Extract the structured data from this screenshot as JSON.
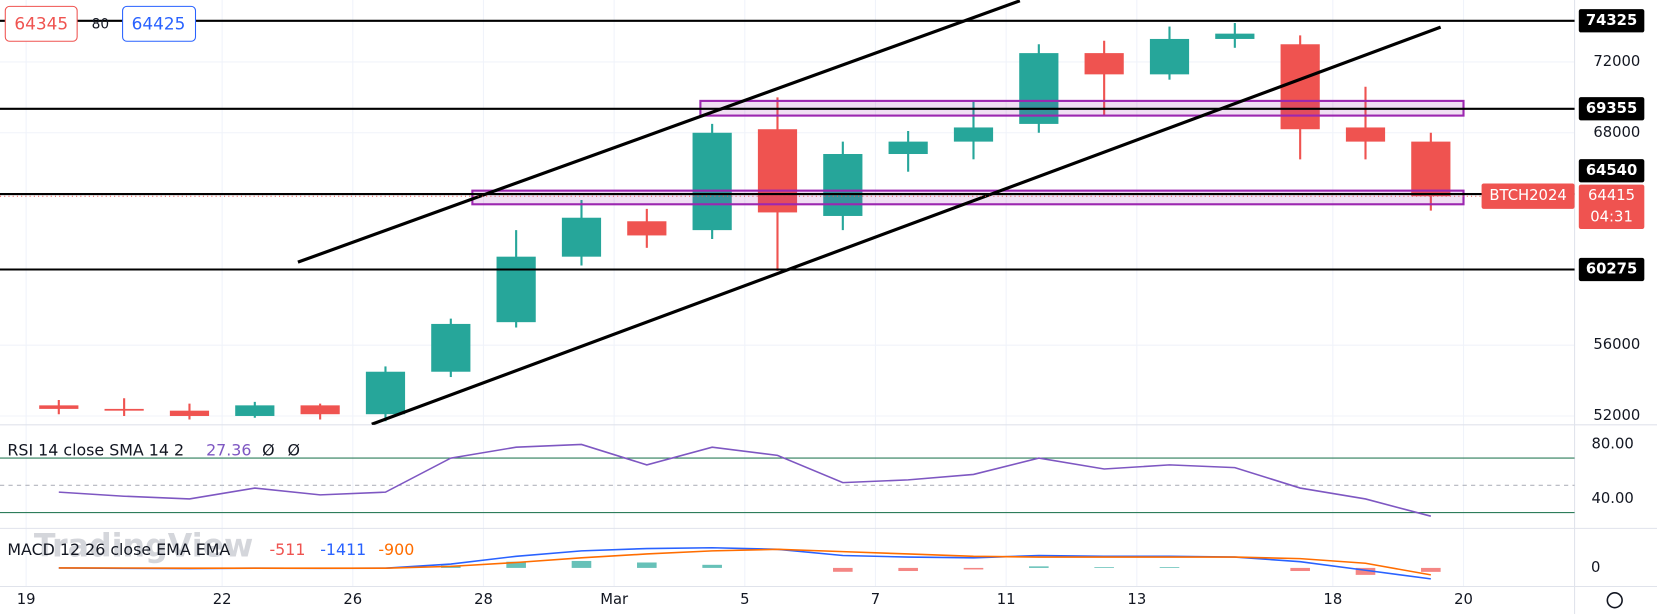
{
  "chart_data": {
    "type": "candlestick",
    "x": [
      0,
      1,
      2,
      3,
      4,
      5,
      6,
      7,
      8,
      9,
      10,
      11,
      12,
      13,
      14,
      15,
      16,
      17,
      18,
      19,
      20,
      21
    ],
    "open": [
      52600,
      52400,
      52300,
      52000,
      52600,
      52100,
      54500,
      57300,
      61000,
      63000,
      62500,
      68200,
      63300,
      66800,
      67500,
      68500,
      72500,
      71300,
      73300,
      73000,
      68300,
      67500
    ],
    "high": [
      52900,
      53000,
      52700,
      52800,
      52700,
      54800,
      57500,
      62500,
      64200,
      63700,
      68500,
      70000,
      67500,
      68100,
      69800,
      73000,
      73200,
      74000,
      74200,
      73500,
      70600,
      68000
    ],
    "low": [
      52100,
      52000,
      51800,
      51900,
      51800,
      51700,
      54200,
      57000,
      60500,
      61500,
      62000,
      60200,
      62500,
      65800,
      66500,
      68000,
      69000,
      71000,
      72800,
      66500,
      66500,
      63600
    ],
    "close": [
      52400,
      52300,
      52000,
      52600,
      52100,
      54500,
      57200,
      61000,
      63200,
      62200,
      68000,
      63500,
      66800,
      67500,
      68300,
      72500,
      71300,
      73300,
      73600,
      68200,
      67500,
      64415
    ],
    "up_color": "#26a69a",
    "down_color": "#ef5350",
    "xlim": [
      -0.4,
      23.7
    ],
    "xticks": [
      {
        "value": 0,
        "label": "19"
      },
      {
        "value": 3,
        "label": "22"
      },
      {
        "value": 5,
        "label": "26"
      },
      {
        "value": 7,
        "label": "28"
      },
      {
        "value": 9,
        "label": "Mar"
      },
      {
        "value": 11,
        "label": "5"
      },
      {
        "value": 13,
        "label": "7"
      },
      {
        "value": 15,
        "label": "11"
      },
      {
        "value": 17,
        "label": "13"
      },
      {
        "value": 20,
        "label": "18"
      },
      {
        "value": 22,
        "label": "20"
      }
    ],
    "ylim": [
      51500,
      75500
    ],
    "yticks": [
      72000,
      68000,
      56000,
      52000
    ],
    "grid": true,
    "levels": [
      74325,
      69355,
      64540,
      60275
    ],
    "zones": [
      {
        "from": 10.32,
        "to": 22.0,
        "low": 68970,
        "high": 69800
      },
      {
        "from": 6.83,
        "to": 22.0,
        "low": 63960,
        "high": 64730
      }
    ],
    "zone_color": "#9c27b0",
    "trendlines": [
      {
        "x": [
          4.16,
          15.21
        ],
        "y": [
          60690,
          75456
        ]
      },
      {
        "x": [
          5.29,
          21.65
        ],
        "y": [
          51530,
          73968
        ]
      }
    ],
    "last": {
      "symbol": "BTCH2024",
      "price": 64415,
      "countdown": "04:31"
    },
    "quote": {
      "bid": 64345,
      "spread": 80,
      "ask": 64425
    },
    "watermark": "TradingView",
    "rsi": {
      "title": "RSI 14 close SMA 14 2",
      "value": 27.36,
      "flags": [
        "Ø",
        "Ø"
      ],
      "color": "#7e57c2",
      "values": [
        45,
        42,
        40,
        48,
        43,
        45,
        70,
        78,
        80,
        65,
        78,
        72,
        52,
        54,
        58,
        70,
        62,
        65,
        63,
        48,
        40,
        27.36
      ],
      "ylim": [
        18.4,
        94.4
      ],
      "yticks": [
        {
          "value": 80,
          "label": "80.00"
        },
        {
          "value": 40,
          "label": "40.00"
        }
      ],
      "bands": [
        70,
        30
      ],
      "mid": 50
    },
    "macd": {
      "title": "MACD 12 26 close EMA EMA",
      "hist": {
        "color": "#ef5350",
        "values": [
          0,
          -40,
          -50,
          -5,
          -20,
          8,
          300,
          800,
          900,
          700,
          400,
          0,
          -500,
          -400,
          -200,
          200,
          100,
          100,
          0,
          -400,
          -900,
          -511
        ]
      },
      "macd": {
        "color": "#2962ff",
        "values": [
          0,
          -50,
          -80,
          -40,
          -60,
          -30,
          500,
          1500,
          2200,
          2500,
          2600,
          2400,
          1600,
          1400,
          1300,
          1600,
          1500,
          1500,
          1400,
          800,
          -300,
          -1411
        ]
      },
      "signal": {
        "color": "#ff6d00",
        "values": [
          0,
          -10,
          -30,
          -35,
          -40,
          -38,
          200,
          700,
          1300,
          1800,
          2200,
          2400,
          2100,
          1800,
          1500,
          1400,
          1400,
          1400,
          1400,
          1200,
          600,
          -900
        ]
      },
      "ylim": [
        -2400,
        5100
      ],
      "yticks": [
        0
      ]
    }
  }
}
